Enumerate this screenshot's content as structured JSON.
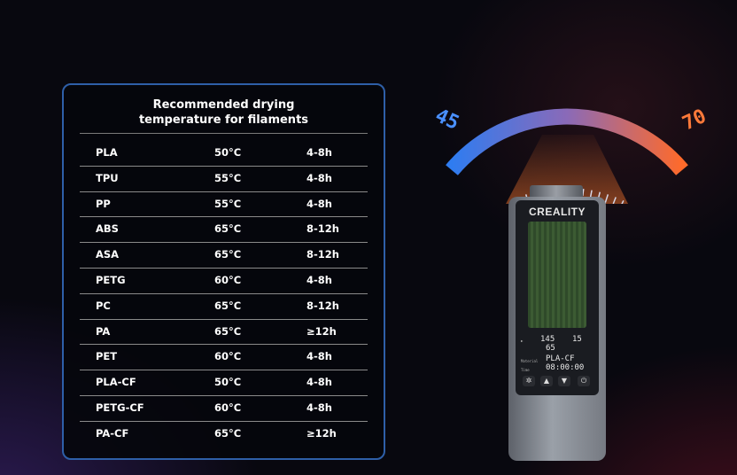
{
  "table": {
    "title_line1": "Recommended drying",
    "title_line2": "temperature for filaments",
    "rows": [
      {
        "material": "PLA",
        "temp": "50°C",
        "time": "4-8h"
      },
      {
        "material": "TPU",
        "temp": "55°C",
        "time": "4-8h"
      },
      {
        "material": "PP",
        "temp": "55°C",
        "time": "4-8h"
      },
      {
        "material": "ABS",
        "temp": "65°C",
        "time": "8-12h"
      },
      {
        "material": "ASA",
        "temp": "65°C",
        "time": "8-12h"
      },
      {
        "material": "PETG",
        "temp": "60°C",
        "time": "4-8h"
      },
      {
        "material": "PC",
        "temp": "65°C",
        "time": "8-12h"
      },
      {
        "material": "PA",
        "temp": "65°C",
        "time": "≥12h"
      },
      {
        "material": "PET",
        "temp": "60°C",
        "time": "4-8h"
      },
      {
        "material": "PLA-CF",
        "temp": "50°C",
        "time": "4-8h"
      },
      {
        "material": "PETG-CF",
        "temp": "60°C",
        "time": "4-8h"
      },
      {
        "material": "PA-CF",
        "temp": "65°C",
        "time": "≥12h"
      }
    ]
  },
  "gauge": {
    "min_label": "45",
    "max_label": "70",
    "cold_color": "#2f7cf0",
    "hot_color": "#ff6a2a"
  },
  "device": {
    "brand": "CREALITY",
    "display": {
      "temp_current": "145",
      "temp_right": "15",
      "set_value": "65",
      "material_label": "Material",
      "material_value": "PLA-CF",
      "time_label": "Time",
      "time_value": "08:00:00"
    }
  }
}
